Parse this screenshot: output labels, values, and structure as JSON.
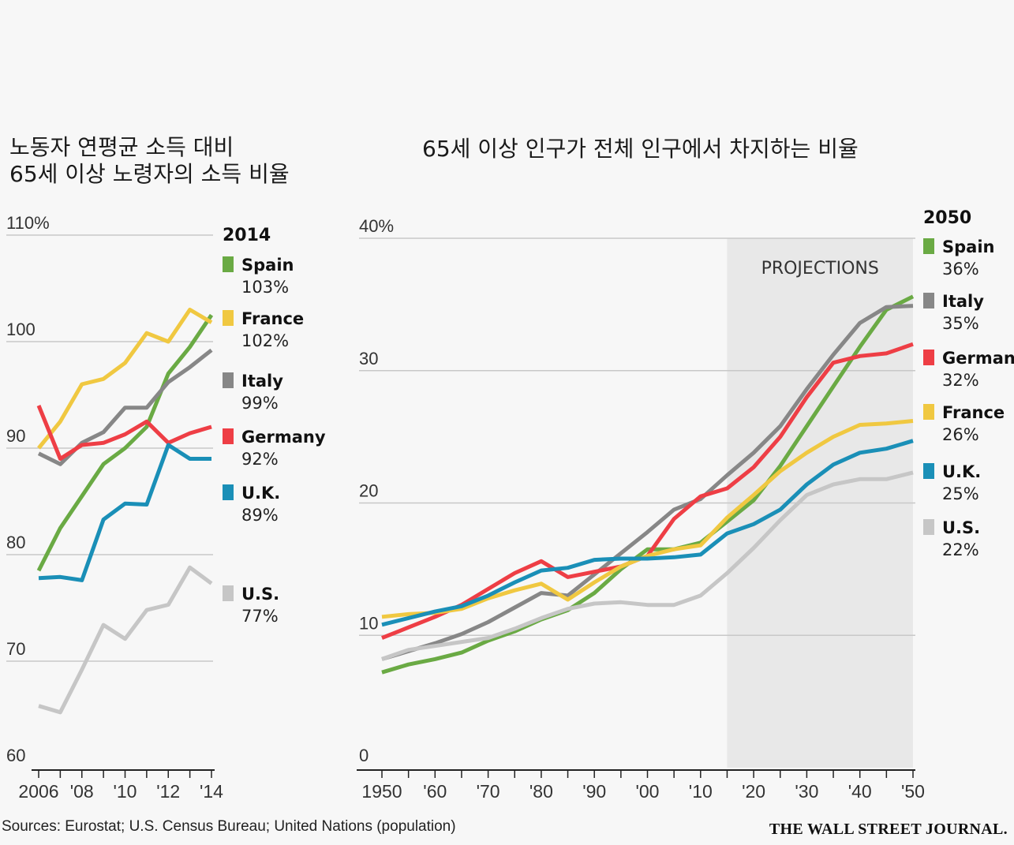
{
  "colors": {
    "Spain": "#6aaa44",
    "France": "#f0c841",
    "Italy": "#878787",
    "Germany": "#ee3e45",
    "U.K.": "#1a8fb7",
    "U.S.": "#c6c6c6",
    "projection_shade": "#e8e8e8"
  },
  "left_title": [
    "노동자 연평균 소득 대비",
    "65세 이상 노령자의 소득 비율"
  ],
  "right_title": "65세 이상 인구가 전체 인구에서 차지하는 비율",
  "sources": "Sources: Eurostat; U.S. Census Bureau; United Nations (population)",
  "brand": "THE WALL STREET JOURNAL.",
  "chart_data": [
    {
      "type": "line",
      "title": "노동자 연평균 소득 대비 65세 이상 노령자의 소득 비율",
      "x": [
        2006,
        2007,
        2008,
        2009,
        2010,
        2011,
        2012,
        2013,
        2014
      ],
      "xticks": [
        2006,
        2008,
        2010,
        2012,
        2014
      ],
      "xtick_labels": [
        "2006",
        "'08",
        "'10",
        "'12",
        "'14"
      ],
      "yticks": [
        60,
        70,
        80,
        90,
        100,
        110
      ],
      "ytick_labels": [
        "60",
        "70",
        "80",
        "90",
        "100",
        "110%"
      ],
      "ylim": [
        60,
        110
      ],
      "legend_title": "2014",
      "legend_placement": "right",
      "series": [
        {
          "name": "Spain",
          "label": "103%",
          "values": [
            78.5,
            82.5,
            85.5,
            88.5,
            90,
            92,
            97,
            99.5,
            102.5
          ]
        },
        {
          "name": "France",
          "label": "102%",
          "values": [
            90,
            92.5,
            96,
            96.5,
            98,
            100.8,
            100,
            103,
            101.8
          ]
        },
        {
          "name": "Italy",
          "label": "99%",
          "values": [
            89.5,
            88.5,
            90.5,
            91.5,
            93.8,
            93.8,
            96.2,
            97.6,
            99.2
          ]
        },
        {
          "name": "Germany",
          "label": "92%",
          "values": [
            94,
            89,
            90.3,
            90.5,
            91.3,
            92.5,
            90.5,
            91.4,
            92
          ]
        },
        {
          "name": "U.K.",
          "label": "89%",
          "values": [
            77.8,
            77.9,
            77.6,
            83.3,
            84.8,
            84.7,
            90.3,
            89,
            89
          ]
        },
        {
          "name": "U.S.",
          "label": "77%",
          "values": [
            65.8,
            65.2,
            69.2,
            73.4,
            72.1,
            74.8,
            75.3,
            78.8,
            77.3
          ]
        }
      ]
    },
    {
      "type": "line",
      "title": "65세 이상 인구가 전체 인구에서 차지하는 비율",
      "x": [
        1950,
        1955,
        1960,
        1965,
        1970,
        1975,
        1980,
        1985,
        1990,
        1995,
        2000,
        2005,
        2010,
        2015,
        2020,
        2025,
        2030,
        2035,
        2040,
        2045,
        2050
      ],
      "xticks": [
        1950,
        1960,
        1970,
        1980,
        1990,
        2000,
        2010,
        2020,
        2030,
        2040,
        2050
      ],
      "xtick_labels": [
        "1950",
        "'60",
        "'70",
        "'80",
        "'90",
        "'00",
        "'10",
        "'20",
        "'30",
        "'40",
        "'50"
      ],
      "yticks": [
        0,
        10,
        20,
        30,
        40
      ],
      "ytick_labels": [
        "0",
        "10",
        "20",
        "30",
        "40%"
      ],
      "ylim": [
        0,
        40
      ],
      "projection_from": 2015,
      "projection_label": "PROJECTIONS",
      "legend_title": "2050",
      "legend_placement": "right",
      "series": [
        {
          "name": "Spain",
          "label": "36%",
          "values": [
            7.2,
            7.8,
            8.2,
            8.7,
            9.6,
            10.3,
            11.2,
            11.9,
            13.2,
            15.0,
            16.5,
            16.5,
            17.0,
            18.6,
            20.2,
            22.8,
            25.8,
            28.8,
            31.8,
            34.6,
            35.6
          ]
        },
        {
          "name": "Italy",
          "label": "35%",
          "values": [
            8.2,
            8.8,
            9.4,
            10.1,
            11.0,
            12.1,
            13.2,
            13.0,
            14.6,
            16.2,
            17.8,
            19.5,
            20.3,
            22.1,
            23.8,
            25.8,
            28.6,
            31.2,
            33.6,
            34.8,
            34.9
          ]
        },
        {
          "name": "Germany",
          "label": "32%",
          "values": [
            9.8,
            10.6,
            11.4,
            12.3,
            13.5,
            14.7,
            15.6,
            14.4,
            14.8,
            15.2,
            16.0,
            18.8,
            20.5,
            21.1,
            22.7,
            25.0,
            28.0,
            30.6,
            31.1,
            31.3,
            32.0
          ]
        },
        {
          "name": "France",
          "label": "26%",
          "values": [
            11.4,
            11.6,
            11.7,
            12.0,
            12.8,
            13.4,
            13.9,
            12.7,
            14.0,
            15.2,
            16.0,
            16.5,
            16.8,
            18.9,
            20.6,
            22.4,
            23.8,
            25.0,
            25.9,
            26.0,
            26.2
          ]
        },
        {
          "name": "U.K.",
          "label": "25%",
          "values": [
            10.8,
            11.3,
            11.8,
            12.2,
            13.0,
            14.0,
            14.9,
            15.1,
            15.7,
            15.8,
            15.8,
            15.9,
            16.1,
            17.7,
            18.4,
            19.5,
            21.4,
            22.9,
            23.8,
            24.1,
            24.7
          ]
        },
        {
          "name": "U.S.",
          "label": "22%",
          "values": [
            8.2,
            8.9,
            9.2,
            9.5,
            9.8,
            10.5,
            11.3,
            12.0,
            12.4,
            12.5,
            12.3,
            12.3,
            13.0,
            14.7,
            16.6,
            18.7,
            20.6,
            21.4,
            21.8,
            21.8,
            22.3
          ]
        }
      ]
    }
  ]
}
